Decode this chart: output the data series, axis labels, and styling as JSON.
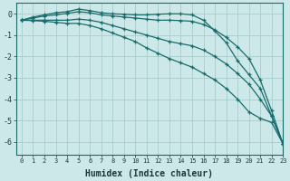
{
  "xlabel": "Humidex (Indice chaleur)",
  "bg_color": "#cce8e8",
  "grid_color": "#aacccc",
  "line_color": "#1a6b6b",
  "xlim": [
    -0.5,
    23
  ],
  "ylim": [
    -6.6,
    0.5
  ],
  "yticks": [
    0,
    -1,
    -2,
    -3,
    -4,
    -5,
    -6
  ],
  "xticks": [
    0,
    1,
    2,
    3,
    4,
    5,
    6,
    7,
    8,
    9,
    10,
    11,
    12,
    13,
    14,
    15,
    16,
    17,
    18,
    19,
    20,
    21,
    22,
    23
  ],
  "series": [
    {
      "x": [
        0,
        1,
        2,
        3,
        4,
        5,
        6,
        7,
        8,
        9,
        10,
        11,
        12,
        13,
        14,
        15,
        16,
        17,
        18,
        19,
        20,
        21,
        22,
        23
      ],
      "y": [
        -0.3,
        -0.15,
        -0.05,
        0.05,
        0.1,
        0.22,
        0.15,
        0.05,
        0.0,
        -0.02,
        -0.05,
        -0.05,
        -0.02,
        0.0,
        0.0,
        -0.05,
        -0.3,
        -0.8,
        -1.35,
        -2.2,
        -2.85,
        -3.5,
        -4.8,
        -6.1
      ]
    },
    {
      "x": [
        0,
        1,
        2,
        3,
        4,
        5,
        6,
        7,
        8,
        9,
        10,
        11,
        12,
        13,
        14,
        15,
        16,
        17,
        18,
        19,
        20,
        21,
        22,
        23
      ],
      "y": [
        -0.3,
        -0.2,
        -0.1,
        -0.05,
        0.02,
        0.1,
        0.05,
        -0.05,
        -0.1,
        -0.15,
        -0.2,
        -0.25,
        -0.3,
        -0.3,
        -0.32,
        -0.35,
        -0.5,
        -0.75,
        -1.1,
        -1.55,
        -2.1,
        -3.1,
        -4.55,
        -6.1
      ]
    },
    {
      "x": [
        0,
        1,
        2,
        3,
        4,
        5,
        6,
        7,
        8,
        9,
        10,
        11,
        12,
        13,
        14,
        15,
        16,
        17,
        18,
        19,
        20,
        21,
        22,
        23
      ],
      "y": [
        -0.3,
        -0.3,
        -0.3,
        -0.3,
        -0.3,
        -0.25,
        -0.3,
        -0.4,
        -0.55,
        -0.7,
        -0.85,
        -1.0,
        -1.15,
        -1.3,
        -1.4,
        -1.5,
        -1.7,
        -2.0,
        -2.35,
        -2.8,
        -3.3,
        -4.0,
        -4.8,
        -6.1
      ]
    },
    {
      "x": [
        0,
        1,
        2,
        3,
        4,
        5,
        6,
        7,
        8,
        9,
        10,
        11,
        12,
        13,
        14,
        15,
        16,
        17,
        18,
        19,
        20,
        21,
        22,
        23
      ],
      "y": [
        -0.3,
        -0.32,
        -0.35,
        -0.4,
        -0.45,
        -0.45,
        -0.55,
        -0.7,
        -0.9,
        -1.1,
        -1.3,
        -1.6,
        -1.85,
        -2.1,
        -2.3,
        -2.5,
        -2.8,
        -3.1,
        -3.5,
        -4.0,
        -4.6,
        -4.9,
        -5.1,
        -6.1
      ]
    }
  ]
}
